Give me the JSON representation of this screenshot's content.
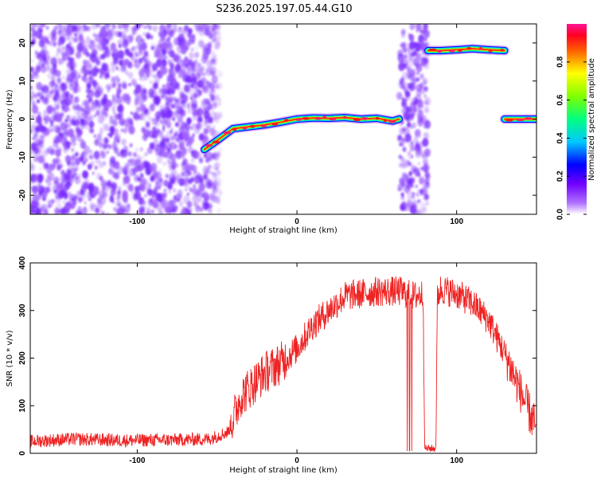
{
  "title": "S236.2025.197.05.44.G10",
  "chart_data": [
    {
      "type": "heatmap",
      "xlabel": "Height of straight line (km)",
      "ylabel": "Frequency (Hz)",
      "xlim": [
        -167,
        150
      ],
      "ylim": [
        -25,
        25
      ],
      "xticks": [
        -100,
        0,
        100
      ],
      "yticks": [
        -20,
        -10,
        0,
        10,
        20
      ],
      "colorbar": {
        "label": "Normalized spectral amplitude",
        "range": [
          0,
          1
        ],
        "ticks": [
          "0.0",
          "0.2",
          "0.4",
          "0.6",
          "0.8"
        ],
        "tick_values": [
          0.0,
          0.2,
          0.4,
          0.6,
          0.8
        ],
        "colors": [
          "#ffffff",
          "#8000ff",
          "#0000ff",
          "#00ffff",
          "#00ff00",
          "#ffff00",
          "#ff0000",
          "#ff1493"
        ]
      },
      "noise_regions": [
        {
          "x": [
            -167,
            -48
          ],
          "amplitude": 0.1
        },
        {
          "x": [
            64,
            82
          ],
          "amplitude": 0.1
        }
      ],
      "tracks": [
        {
          "x": [
            -58,
            -48,
            -40,
            -30,
            -20,
            -10,
            0,
            10,
            20,
            30,
            40,
            50,
            60,
            64
          ],
          "y": [
            -8,
            -5,
            -2.5,
            -2,
            -1.5,
            -0.8,
            0,
            0.3,
            0.2,
            0.4,
            0,
            0.2,
            -0.5,
            0
          ],
          "amplitude": 0.9
        },
        {
          "x": [
            82,
            90,
            100,
            110,
            120,
            130
          ],
          "y": [
            18,
            18,
            18.2,
            18.5,
            18.2,
            18
          ],
          "amplitude": 0.9
        },
        {
          "x": [
            130,
            150
          ],
          "y": [
            0,
            0
          ],
          "amplitude": 0.9
        }
      ]
    },
    {
      "type": "line",
      "xlabel": "Height of straight line (km)",
      "ylabel": "SNR (10 * v/v)",
      "xlim": [
        -167,
        150
      ],
      "ylim": [
        0,
        400
      ],
      "xticks": [
        -100,
        0,
        100
      ],
      "yticks": [
        0,
        100,
        200,
        300,
        400
      ],
      "color": "#ee2222",
      "points": [
        [
          -167,
          25
        ],
        [
          -140,
          30
        ],
        [
          -110,
          27
        ],
        [
          -80,
          28
        ],
        [
          -55,
          30
        ],
        [
          -43,
          45
        ],
        [
          -35,
          120
        ],
        [
          -20,
          170
        ],
        [
          -10,
          190
        ],
        [
          0,
          220
        ],
        [
          10,
          270
        ],
        [
          20,
          300
        ],
        [
          30,
          330
        ],
        [
          50,
          340
        ],
        [
          65,
          340
        ],
        [
          73,
          330
        ],
        [
          79,
          335
        ],
        [
          80,
          10
        ],
        [
          87,
          10
        ],
        [
          88,
          330
        ],
        [
          90,
          345
        ],
        [
          100,
          335
        ],
        [
          110,
          315
        ],
        [
          120,
          280
        ],
        [
          130,
          210
        ],
        [
          140,
          130
        ],
        [
          145,
          90
        ],
        [
          150,
          50
        ]
      ],
      "dropouts_x": [
        69,
        70.5,
        72
      ]
    }
  ]
}
